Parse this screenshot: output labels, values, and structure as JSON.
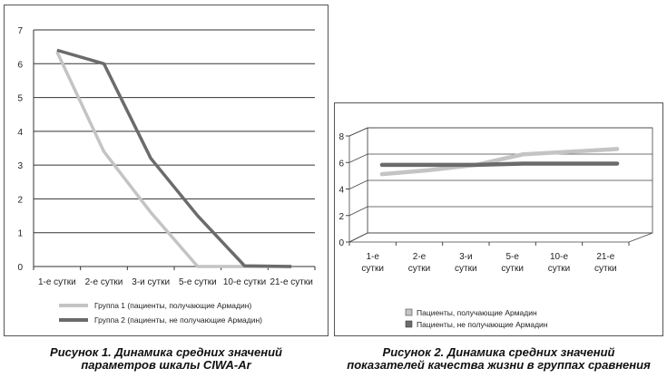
{
  "chart_data": [
    {
      "type": "line",
      "categories": [
        "1-е сутки",
        "2-е сутки",
        "3-и сутки",
        "5-е сутки",
        "10-е сутки",
        "21-е сутки"
      ],
      "series": [
        {
          "name": "Группа 1 (пациенты, получающие Армадин)",
          "values": [
            6.35,
            3.4,
            1.6,
            0.0,
            0.0,
            0.0
          ],
          "color": "#c4c4c4"
        },
        {
          "name": "Группа 2 (пациенты, не получающие Армадин)",
          "values": [
            6.4,
            6.0,
            3.2,
            1.5,
            0.02,
            0.0
          ],
          "color": "#6b6b6b"
        }
      ],
      "yticks": [
        "0",
        "1",
        "2",
        "3",
        "4",
        "5",
        "6",
        "7"
      ],
      "ylim": [
        0,
        7
      ],
      "grid": true,
      "legend": "bottom",
      "caption": [
        "Рисунок 1. Динамика средних значений",
        "параметров шкалы CIWA-Ar"
      ]
    },
    {
      "type": "line",
      "categories": [
        [
          "1-е",
          "сутки"
        ],
        [
          "2-е",
          "сутки"
        ],
        [
          "3-и",
          "сутки"
        ],
        [
          "5-е",
          "сутки"
        ],
        [
          "10-е",
          "сутки"
        ],
        [
          "21-е",
          "сутки"
        ]
      ],
      "series": [
        {
          "name": "Пациенты, получающие Армадин",
          "values": [
            4.8,
            5.1,
            5.5,
            6.3,
            6.5,
            6.7
          ],
          "color": "#c4c4c4"
        },
        {
          "name": "Пациенты, не получающие Армадин",
          "values": [
            5.5,
            5.5,
            5.5,
            5.6,
            5.6,
            5.6
          ],
          "color": "#6b6b6b"
        }
      ],
      "yticks": [
        "0",
        "2",
        "4",
        "6",
        "8"
      ],
      "ylim": [
        0,
        8
      ],
      "grid": true,
      "perspective": "3d",
      "legend": "bottom",
      "caption": [
        "Рисунок 2. Динамика средних значений",
        "показателей качества жизни в группах сравнения"
      ]
    }
  ]
}
